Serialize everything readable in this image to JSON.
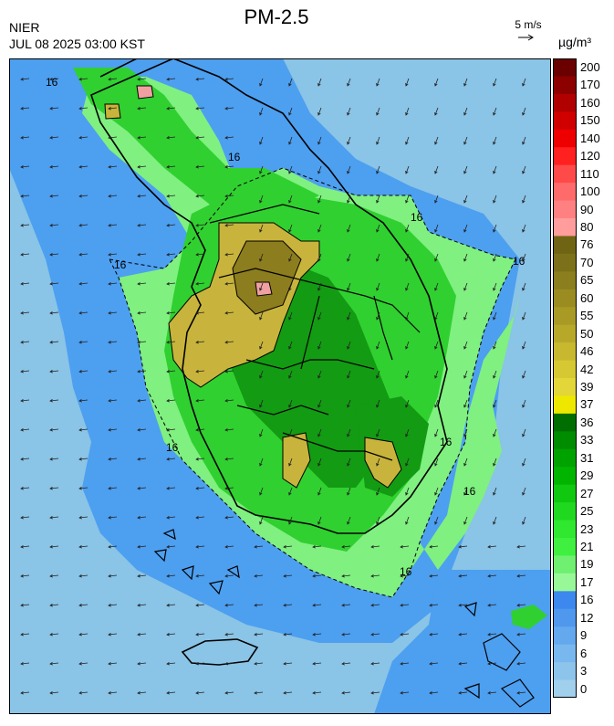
{
  "header": {
    "title": "PM-2.5",
    "organization": "NIER",
    "timestamp": "JUL 08 2025 03:00 KST",
    "wind_scale_label": "5 m/s",
    "unit_label": "µg/m³"
  },
  "map": {
    "contour_label": "16",
    "wind_direction": "south-west",
    "colors": {
      "sea_low": "#8ac4e6",
      "sea_mid": "#4d9ff0",
      "light_green": "#80f080",
      "green": "#30d030",
      "dark_green": "#139b13",
      "olive": "#c8b43c",
      "dark_olive": "#8c7d1e",
      "pink": "#f0a0a0",
      "boundary": "#000000"
    }
  },
  "colorbar": {
    "levels": [
      {
        "label": "200",
        "color": "#6a0000"
      },
      {
        "label": "170",
        "color": "#8c0000"
      },
      {
        "label": "160",
        "color": "#b00000"
      },
      {
        "label": "150",
        "color": "#d00000"
      },
      {
        "label": "140",
        "color": "#ee0000"
      },
      {
        "label": "120",
        "color": "#ff2020"
      },
      {
        "label": "110",
        "color": "#ff4a4a"
      },
      {
        "label": "100",
        "color": "#ff6a6a"
      },
      {
        "label": "90",
        "color": "#ff8080"
      },
      {
        "label": "80",
        "color": "#ff9c9c"
      },
      {
        "label": "76",
        "color": "#6e6414"
      },
      {
        "label": "70",
        "color": "#7c701a"
      },
      {
        "label": "65",
        "color": "#8a7e1e"
      },
      {
        "label": "60",
        "color": "#9a8c20"
      },
      {
        "label": "55",
        "color": "#a89a24"
      },
      {
        "label": "50",
        "color": "#b8a82a"
      },
      {
        "label": "46",
        "color": "#c8b830"
      },
      {
        "label": "42",
        "color": "#d6c832"
      },
      {
        "label": "39",
        "color": "#e2d638"
      },
      {
        "label": "37",
        "color": "#eee800"
      },
      {
        "label": "36",
        "color": "#006e00"
      },
      {
        "label": "33",
        "color": "#008c00"
      },
      {
        "label": "31",
        "color": "#00a200"
      },
      {
        "label": "29",
        "color": "#00b400"
      },
      {
        "label": "27",
        "color": "#10c810"
      },
      {
        "label": "25",
        "color": "#20d820"
      },
      {
        "label": "23",
        "color": "#30e830"
      },
      {
        "label": "21",
        "color": "#40f040"
      },
      {
        "label": "19",
        "color": "#70f070"
      },
      {
        "label": "17",
        "color": "#98f898"
      },
      {
        "label": "16",
        "color": "#3c88ee"
      },
      {
        "label": "12",
        "color": "#5098ee"
      },
      {
        "label": "9",
        "color": "#64a8ee"
      },
      {
        "label": "6",
        "color": "#78b8ee"
      },
      {
        "label": "3",
        "color": "#8cc4ec"
      },
      {
        "label": "0",
        "color": "#a0d0ec"
      }
    ]
  }
}
